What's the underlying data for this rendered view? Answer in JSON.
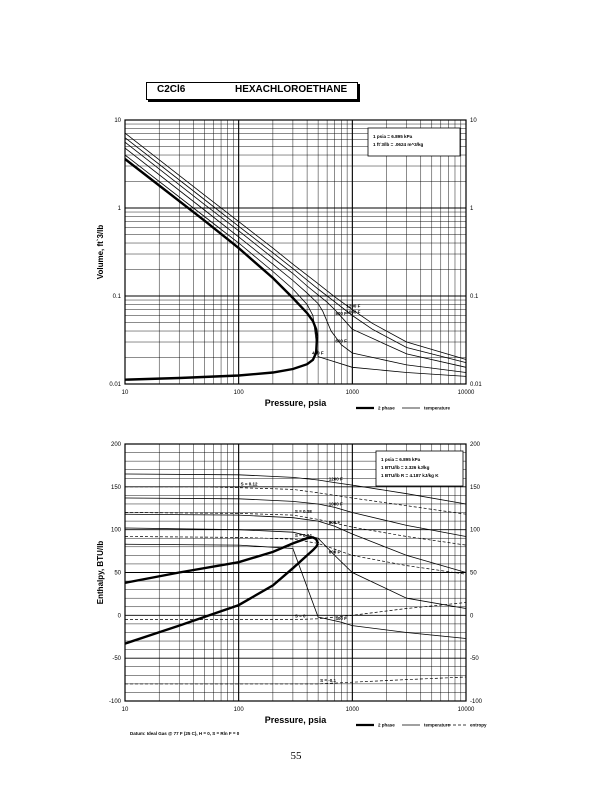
{
  "header": {
    "formula": "C2Cl6",
    "name": "HEXACHLOROETHANE"
  },
  "page_number": "55",
  "footnote": "Datum: Ideal Gas @ 77 F (25 C), H = 0, S = Rln F = 0",
  "chart_data": [
    {
      "type": "line",
      "xscale": "log",
      "yscale": "log",
      "xlim": [
        10,
        10000
      ],
      "ylim": [
        0.01,
        10
      ],
      "xlabel": "Pressure,  psia",
      "ylabel": "Volume,  ft^3/lb",
      "x_ticks": [
        "10",
        "100",
        "1000",
        "10000"
      ],
      "y_ticks": [
        "0.01",
        "0.1",
        "1",
        "10"
      ],
      "y_ticks_right": [
        "0.01",
        "0.1",
        "1",
        "10"
      ],
      "grid": true,
      "info_box": [
        "1 psia = 6.895 kPa",
        "1 ft^3/lb = .0624 m^3/kg"
      ],
      "legend": {
        "placement": "bottom-right",
        "entries": [
          "2 phase",
          "temperature"
        ]
      },
      "series": [
        {
          "name": "2 phase",
          "style": "thick",
          "x": [
            10,
            20,
            50,
            100,
            200,
            300,
            400,
            450,
            480,
            490
          ],
          "y": [
            3.6,
            1.8,
            0.72,
            0.35,
            0.16,
            0.095,
            0.064,
            0.052,
            0.042,
            0.035
          ]
        },
        {
          "name": "2 phase",
          "style": "thick",
          "x": [
            10,
            30,
            100,
            200,
            300,
            400,
            450,
            480,
            490
          ],
          "y": [
            0.0112,
            0.0117,
            0.0125,
            0.0135,
            0.0148,
            0.0168,
            0.0188,
            0.0225,
            0.035
          ]
        },
        {
          "label": "400 F",
          "x": [
            10,
            50,
            100,
            200,
            300,
            400,
            450,
            500,
            1000,
            3000,
            10000
          ],
          "y": [
            4.0,
            0.8,
            0.4,
            0.19,
            0.12,
            0.08,
            0.06,
            0.0205,
            0.0155,
            0.0135,
            0.0122
          ]
        },
        {
          "label": "600 F",
          "x": [
            10,
            50,
            100,
            200,
            300,
            400,
            500,
            550,
            650,
            800,
            1000,
            3000,
            10000
          ],
          "y": [
            4.8,
            0.95,
            0.47,
            0.23,
            0.15,
            0.108,
            0.082,
            0.067,
            0.04,
            0.028,
            0.0225,
            0.0165,
            0.0135
          ]
        },
        {
          "label": "800 F",
          "x": [
            10,
            50,
            100,
            200,
            300,
            400,
            500,
            600,
            700,
            800,
            1000,
            3000,
            10000
          ],
          "y": [
            5.6,
            1.1,
            0.55,
            0.27,
            0.18,
            0.13,
            0.103,
            0.085,
            0.07,
            0.058,
            0.042,
            0.022,
            0.0155
          ]
        },
        {
          "label": "1000 F",
          "x": [
            10,
            50,
            100,
            200,
            300,
            500,
            700,
            1000,
            1500,
            3000,
            10000
          ],
          "y": [
            6.3,
            1.25,
            0.62,
            0.31,
            0.205,
            0.12,
            0.086,
            0.06,
            0.042,
            0.026,
            0.0175
          ]
        },
        {
          "label": "1200 F",
          "x": [
            10,
            50,
            100,
            200,
            300,
            500,
            700,
            1000,
            1500,
            3000,
            10000
          ],
          "y": [
            7.1,
            1.4,
            0.7,
            0.35,
            0.23,
            0.138,
            0.098,
            0.07,
            0.049,
            0.03,
            0.019
          ]
        }
      ]
    },
    {
      "type": "line",
      "xscale": "log",
      "yscale": "linear",
      "xlim": [
        10,
        10000
      ],
      "ylim": [
        -100,
        200
      ],
      "xlabel": "Pressure,  psia",
      "ylabel": "Enthalpy,  BTU/lb",
      "x_ticks": [
        "10",
        "100",
        "1000",
        "10000"
      ],
      "y_ticks": [
        "-100",
        "-50",
        "0",
        "50",
        "100",
        "150",
        "200"
      ],
      "y_ticks_right": [
        "-100",
        "-50",
        "0",
        "50",
        "100",
        "150",
        "200"
      ],
      "grid": true,
      "info_box": [
        "1 psia = 6.895 kPa",
        "1 BTU/lb = 2.326 kJ/kg",
        "1 BTU/lb R = 4.187 kJ/kg K"
      ],
      "legend": {
        "placement": "bottom-right",
        "entries": [
          "2 phase",
          "temperature",
          "entropy"
        ]
      },
      "series": [
        {
          "name": "2 phase",
          "style": "thick",
          "x": [
            10,
            30,
            100,
            200,
            300,
            400,
            450,
            480,
            500
          ],
          "y": [
            38,
            50,
            62,
            74,
            84,
            90,
            91,
            89,
            84
          ]
        },
        {
          "name": "2 phase",
          "style": "thick",
          "x": [
            10,
            30,
            100,
            200,
            300,
            400,
            450,
            480,
            500
          ],
          "y": [
            -33,
            -12,
            12,
            35,
            55,
            70,
            76,
            80,
            84
          ]
        },
        {
          "label": "400 F",
          "x": [
            10,
            100,
            300,
            500,
            800,
            1000,
            3000,
            10000
          ],
          "y": [
            83,
            82,
            78,
            -2,
            -8,
            -12,
            -20,
            -27
          ]
        },
        {
          "label": "600 F",
          "x": [
            10,
            100,
            300,
            500,
            700,
            1000,
            3000,
            10000
          ],
          "y": [
            102,
            100,
            97,
            90,
            70,
            50,
            20,
            8
          ]
        },
        {
          "label": "800 F",
          "x": [
            10,
            100,
            300,
            500,
            700,
            1000,
            3000,
            10000
          ],
          "y": [
            118,
            117,
            114,
            110,
            104,
            95,
            70,
            50
          ]
        },
        {
          "label": "1000 F",
          "x": [
            10,
            100,
            300,
            500,
            700,
            1000,
            3000,
            10000
          ],
          "y": [
            137,
            136,
            133,
            130,
            126,
            120,
            105,
            92
          ]
        },
        {
          "label": "1200 F",
          "x": [
            10,
            100,
            300,
            500,
            700,
            1000,
            3000,
            10000
          ],
          "y": [
            165,
            164,
            161,
            158,
            155,
            152,
            142,
            130
          ]
        },
        {
          "label": "S = 0.12",
          "style": "dashed",
          "x": [
            10,
            50,
            100,
            300,
            500,
            1000,
            3000,
            10000
          ],
          "y": [
            150,
            150,
            149,
            147,
            143,
            137,
            128,
            118
          ]
        },
        {
          "label": "S = 0.08",
          "style": "dashed",
          "x": [
            10,
            100,
            300,
            500,
            1000,
            3000,
            10000
          ],
          "y": [
            120,
            119,
            117,
            112,
            103,
            92,
            82
          ]
        },
        {
          "label": "S = 0.04",
          "style": "dashed",
          "x": [
            10,
            100,
            300,
            500,
            1000,
            3000,
            10000
          ],
          "y": [
            92,
            91,
            89,
            84,
            70,
            58,
            48
          ]
        },
        {
          "label": "S = 0",
          "style": "dashed",
          "x": [
            10,
            100,
            300,
            500,
            1000,
            3000,
            10000
          ],
          "y": [
            -5,
            -5,
            -5,
            -4,
            0,
            8,
            15
          ]
        },
        {
          "label": "S = -0.1",
          "style": "dashed",
          "x": [
            10,
            100,
            500,
            1000,
            3000,
            10000
          ],
          "y": [
            -80,
            -80,
            -80,
            -78,
            -75,
            -72
          ]
        }
      ]
    }
  ]
}
